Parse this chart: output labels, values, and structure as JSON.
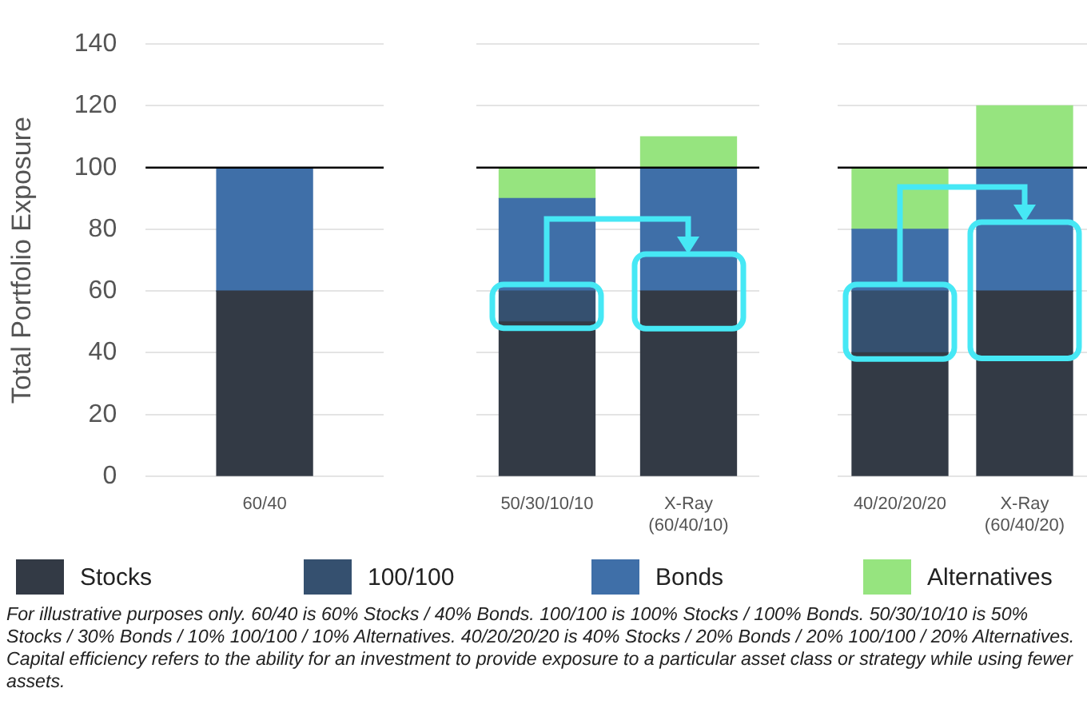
{
  "chart_data": [
    {
      "type": "bar",
      "ylabel": "Total Portfolio Exposure",
      "categories": [
        "60/40"
      ],
      "stacked": true,
      "series": [
        {
          "name": "Stocks",
          "color": "#333a45",
          "values": [
            60
          ]
        },
        {
          "name": "100/100",
          "color": "#35506f",
          "values": [
            null
          ]
        },
        {
          "name": "Bonds",
          "color": "#3f6fa8",
          "values": [
            40
          ]
        },
        {
          "name": "Alternatives",
          "color": "#96e47f",
          "values": [
            null
          ]
        }
      ],
      "ylim": [
        0,
        140
      ],
      "yticks": [
        0,
        20,
        40,
        60,
        80,
        100,
        120,
        140
      ],
      "grid": "y",
      "legend": "bottom",
      "ref_lines": [
        {
          "axis": "y",
          "value": 100,
          "color": "#000000"
        }
      ],
      "annotations": [
        "For illustrative purposes only.  60/40 is 60% Stocks / 40% Bonds.  100/100 is 100% Stocks / 100% Bonds.  50/30/10/10 is 50% Stocks / 30% Bonds / 10% 100/100 / 10% Alternatives.  40/20/20/20 is 40% Stocks / 20% Bonds / 20% 100/100 / 20% Alternatives.  Capital efficiency refers to the ability for an investment to provide exposure to a particular asset class or strategy while using fewer assets."
      ]
    },
    {
      "type": "bar",
      "categories": [
        "50/30/10/10",
        "X-Ray (60/40/10)"
      ],
      "stacked": true,
      "series": [
        {
          "color": "#333a45",
          "values": [
            50,
            60
          ]
        },
        {
          "color": "#35506f",
          "values": [
            10,
            null
          ]
        },
        {
          "color": "#3f6fa8",
          "values": [
            30,
            40
          ]
        },
        {
          "color": "#96e47f",
          "values": [
            10,
            10
          ]
        }
      ],
      "ylim": [
        0,
        140
      ],
      "yticks": [
        0,
        20,
        40,
        60,
        80,
        100,
        120,
        140
      ],
      "grid": "y",
      "tick_labels": "x",
      "ref_lines": [
        {
          "axis": "y",
          "value": 100,
          "color": "#000000"
        }
      ]
    },
    {
      "type": "bar",
      "categories": [
        "40/20/20/20",
        "X-Ray (60/40/20)"
      ],
      "stacked": true,
      "series": [
        {
          "color": "#333a45",
          "values": [
            40,
            60
          ]
        },
        {
          "color": "#35506f",
          "values": [
            20,
            null
          ]
        },
        {
          "color": "#3f6fa8",
          "values": [
            20,
            40
          ]
        },
        {
          "color": "#96e47f",
          "values": [
            20,
            20
          ]
        }
      ],
      "ylim": [
        0,
        140
      ],
      "yticks": [
        0,
        20,
        40,
        60,
        80,
        100,
        120,
        140
      ],
      "grid": "y",
      "tick_labels": "x",
      "ref_lines": [
        {
          "axis": "y",
          "value": 100,
          "color": "#000000"
        }
      ]
    }
  ]
}
